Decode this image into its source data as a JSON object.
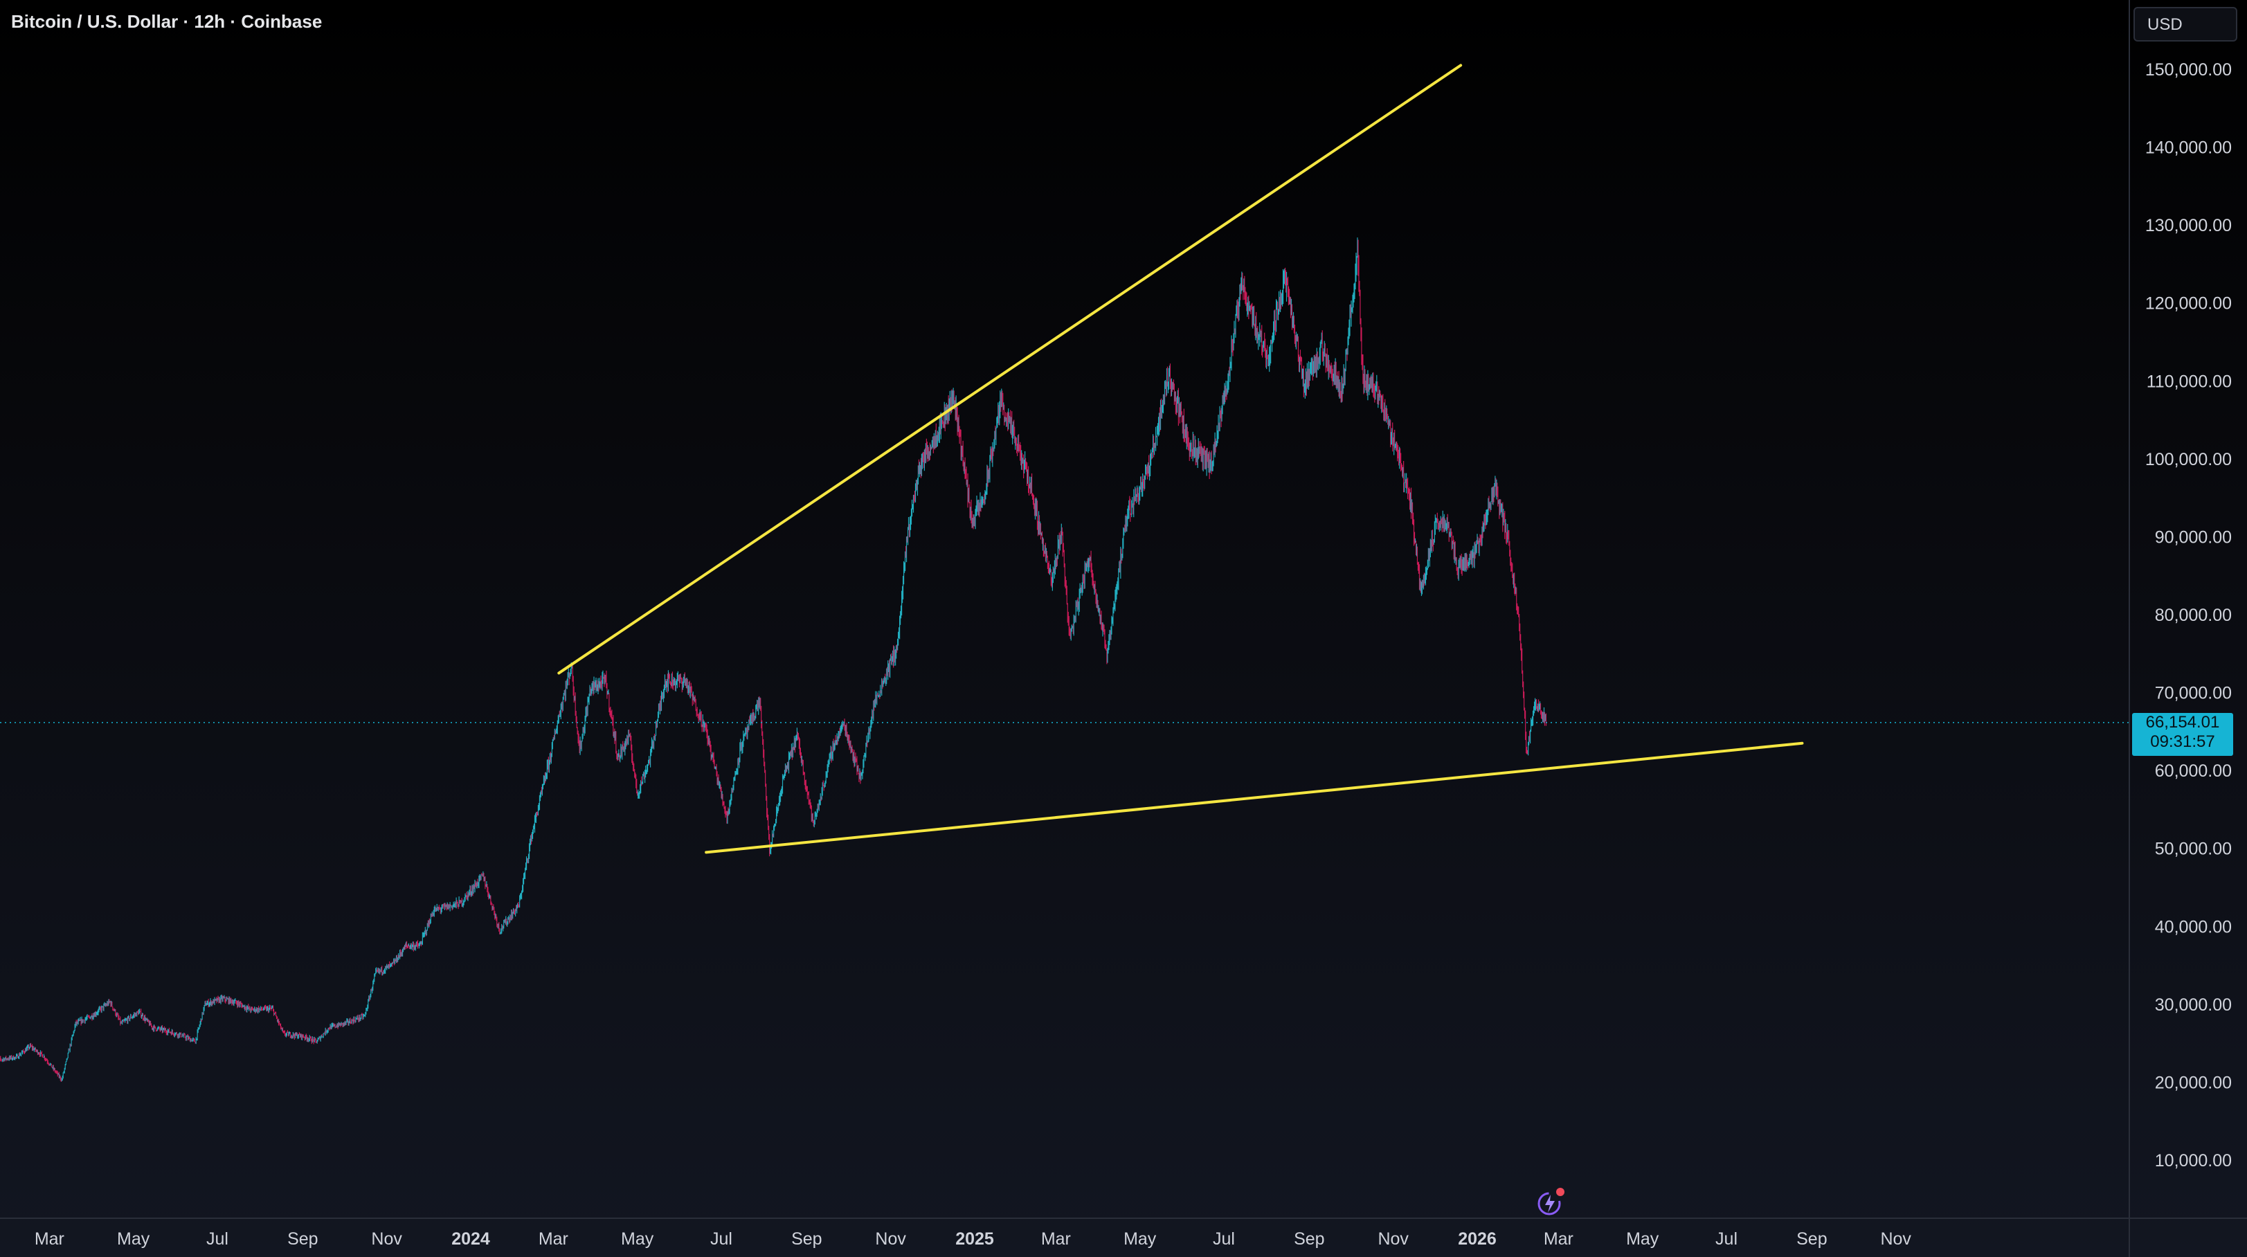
{
  "header": {
    "title": "Bitcoin / U.S. Dollar · 12h · Coinbase"
  },
  "currency_button": {
    "label": "USD"
  },
  "last_price": {
    "value": "66,154.01",
    "countdown": "09:31:57"
  },
  "colors": {
    "up": "#26c6da",
    "down": "#e91e63",
    "trendline": "#f5e642",
    "price_line": "#16b4d4"
  },
  "icons": [
    "lightning-ai-icon"
  ],
  "chart_data": {
    "type": "candlestick",
    "title": "Bitcoin / U.S. Dollar · 12h · Coinbase",
    "ylim": [
      0,
      155000
    ],
    "yticks": [
      10000,
      20000,
      30000,
      40000,
      50000,
      60000,
      70000,
      80000,
      90000,
      100000,
      110000,
      120000,
      130000,
      140000,
      150000
    ],
    "ytick_labels": [
      "10,000.00",
      "20,000.00",
      "30,000.00",
      "40,000.00",
      "50,000.00",
      "60,000.00",
      "70,000.00",
      "80,000.00",
      "90,000.00",
      "100,000.00",
      "110,000.00",
      "120,000.00",
      "130,000.00",
      "140,000.00",
      "150,000.00"
    ],
    "xticks": [
      {
        "date": "2023-03-01",
        "label": "Mar",
        "bold": false
      },
      {
        "date": "2023-05-01",
        "label": "May",
        "bold": false
      },
      {
        "date": "2023-07-01",
        "label": "Jul",
        "bold": false
      },
      {
        "date": "2023-09-01",
        "label": "Sep",
        "bold": false
      },
      {
        "date": "2023-11-01",
        "label": "Nov",
        "bold": false
      },
      {
        "date": "2024-01-01",
        "label": "2024",
        "bold": true
      },
      {
        "date": "2024-03-01",
        "label": "Mar",
        "bold": false
      },
      {
        "date": "2024-05-01",
        "label": "May",
        "bold": false
      },
      {
        "date": "2024-07-01",
        "label": "Jul",
        "bold": false
      },
      {
        "date": "2024-09-01",
        "label": "Sep",
        "bold": false
      },
      {
        "date": "2024-11-01",
        "label": "Nov",
        "bold": false
      },
      {
        "date": "2025-01-01",
        "label": "2025",
        "bold": true
      },
      {
        "date": "2025-03-01",
        "label": "Mar",
        "bold": false
      },
      {
        "date": "2025-05-01",
        "label": "May",
        "bold": false
      },
      {
        "date": "2025-07-01",
        "label": "Jul",
        "bold": false
      },
      {
        "date": "2025-09-01",
        "label": "Sep",
        "bold": false
      },
      {
        "date": "2025-11-01",
        "label": "Nov",
        "bold": false
      },
      {
        "date": "2026-01-01",
        "label": "2026",
        "bold": true
      },
      {
        "date": "2026-03-01",
        "label": "Mar",
        "bold": false
      },
      {
        "date": "2026-05-01",
        "label": "May",
        "bold": false
      },
      {
        "date": "2026-07-01",
        "label": "Jul",
        "bold": false
      },
      {
        "date": "2026-09-01",
        "label": "Sep",
        "bold": false
      },
      {
        "date": "2026-11-01",
        "label": "Nov",
        "bold": false
      }
    ],
    "x_range": [
      "2023-01-20",
      "2027-01-15"
    ],
    "price_series": [
      [
        "2023-01-20",
        22800
      ],
      [
        "2023-02-05",
        23200
      ],
      [
        "2023-02-15",
        24600
      ],
      [
        "2023-02-25",
        23300
      ],
      [
        "2023-03-10",
        20300
      ],
      [
        "2023-03-20",
        27500
      ],
      [
        "2023-04-01",
        28500
      ],
      [
        "2023-04-14",
        30300
      ],
      [
        "2023-04-22",
        27500
      ],
      [
        "2023-05-05",
        29000
      ],
      [
        "2023-05-15",
        27000
      ],
      [
        "2023-05-25",
        26600
      ],
      [
        "2023-06-05",
        26000
      ],
      [
        "2023-06-15",
        25200
      ],
      [
        "2023-06-22",
        30000
      ],
      [
        "2023-07-05",
        30700
      ],
      [
        "2023-07-15",
        30200
      ],
      [
        "2023-07-25",
        29300
      ],
      [
        "2023-08-10",
        29400
      ],
      [
        "2023-08-18",
        26200
      ],
      [
        "2023-09-01",
        25900
      ],
      [
        "2023-09-11",
        25200
      ],
      [
        "2023-09-20",
        27000
      ],
      [
        "2023-10-01",
        27500
      ],
      [
        "2023-10-16",
        28500
      ],
      [
        "2023-10-24",
        34000
      ],
      [
        "2023-11-05",
        35000
      ],
      [
        "2023-11-15",
        37500
      ],
      [
        "2023-11-25",
        37500
      ],
      [
        "2023-12-05",
        42000
      ],
      [
        "2023-12-15",
        42500
      ],
      [
        "2023-12-25",
        43000
      ],
      [
        "2024-01-10",
        46500
      ],
      [
        "2024-01-22",
        39500
      ],
      [
        "2024-02-05",
        42700
      ],
      [
        "2024-02-14",
        51500
      ],
      [
        "2024-02-28",
        62000
      ],
      [
        "2024-03-05",
        67000
      ],
      [
        "2024-03-14",
        73500
      ],
      [
        "2024-03-20",
        62500
      ],
      [
        "2024-03-28",
        70500
      ],
      [
        "2024-04-08",
        71500
      ],
      [
        "2024-04-17",
        61500
      ],
      [
        "2024-04-25",
        64500
      ],
      [
        "2024-05-01",
        57000
      ],
      [
        "2024-05-10",
        61500
      ],
      [
        "2024-05-21",
        71500
      ],
      [
        "2024-06-05",
        71500
      ],
      [
        "2024-06-20",
        65000
      ],
      [
        "2024-07-05",
        54000
      ],
      [
        "2024-07-15",
        63000
      ],
      [
        "2024-07-29",
        69000
      ],
      [
        "2024-08-05",
        49500
      ],
      [
        "2024-08-15",
        59000
      ],
      [
        "2024-08-25",
        64500
      ],
      [
        "2024-09-06",
        53000
      ],
      [
        "2024-09-20",
        63000
      ],
      [
        "2024-09-28",
        66000
      ],
      [
        "2024-10-10",
        59000
      ],
      [
        "2024-10-20",
        68500
      ],
      [
        "2024-10-29",
        72500
      ],
      [
        "2024-11-06",
        76000
      ],
      [
        "2024-11-13",
        90000
      ],
      [
        "2024-11-22",
        99000
      ],
      [
        "2024-12-05",
        103500
      ],
      [
        "2024-12-17",
        108000
      ],
      [
        "2024-12-30",
        92000
      ],
      [
        "2025-01-08",
        95000
      ],
      [
        "2025-01-20",
        107500
      ],
      [
        "2025-01-31",
        102000
      ],
      [
        "2025-02-10",
        97000
      ],
      [
        "2025-02-26",
        84000
      ],
      [
        "2025-03-05",
        91000
      ],
      [
        "2025-03-11",
        77000
      ],
      [
        "2025-03-25",
        87500
      ],
      [
        "2025-04-07",
        75000
      ],
      [
        "2025-04-22",
        93000
      ],
      [
        "2025-05-08",
        99000
      ],
      [
        "2025-05-22",
        111000
      ],
      [
        "2025-06-05",
        102000
      ],
      [
        "2025-06-22",
        99000
      ],
      [
        "2025-07-03",
        109500
      ],
      [
        "2025-07-14",
        122500
      ],
      [
        "2025-07-25",
        116500
      ],
      [
        "2025-08-02",
        113000
      ],
      [
        "2025-08-14",
        123500
      ],
      [
        "2025-08-28",
        109500
      ],
      [
        "2025-09-10",
        114000
      ],
      [
        "2025-09-25",
        109000
      ],
      [
        "2025-10-06",
        126000
      ],
      [
        "2025-10-10",
        110000
      ],
      [
        "2025-10-20",
        109000
      ],
      [
        "2025-11-04",
        101000
      ],
      [
        "2025-11-14",
        94000
      ],
      [
        "2025-11-21",
        83000
      ],
      [
        "2025-12-02",
        91500
      ],
      [
        "2025-12-10",
        92000
      ],
      [
        "2025-12-18",
        86000
      ],
      [
        "2025-12-31",
        88000
      ],
      [
        "2026-01-14",
        96500
      ],
      [
        "2026-01-24",
        89000
      ],
      [
        "2026-02-01",
        78000
      ],
      [
        "2026-02-06",
        62000
      ],
      [
        "2026-02-12",
        69000
      ],
      [
        "2026-02-20",
        66154
      ]
    ],
    "trendlines": [
      {
        "name": "upper",
        "from": [
          "2024-03-05",
          72500
        ],
        "to": [
          "2025-12-20",
          150500
        ]
      },
      {
        "name": "lower",
        "from": [
          "2024-06-20",
          49500
        ],
        "to": [
          "2026-08-25",
          63500
        ]
      }
    ],
    "last_price": 66154.01
  }
}
